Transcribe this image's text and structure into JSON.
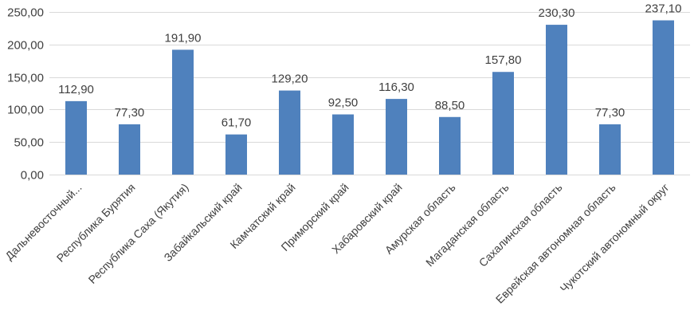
{
  "chart_data": {
    "type": "bar",
    "title": "",
    "xlabel": "",
    "ylabel": "",
    "ylim": [
      0,
      250
    ],
    "yticks": [
      0,
      50,
      100,
      150,
      200,
      250
    ],
    "ytick_labels": [
      "0,00",
      "50,00",
      "100,00",
      "150,00",
      "200,00",
      "250,00"
    ],
    "grid": true,
    "legend": "none",
    "bar_color": "#4f81bd",
    "categories": [
      "Дальневосточный...",
      "Республика Бурятия",
      "Республика Саха (Якутия)",
      "Забайкальский край",
      "Камчатский край",
      "Приморский край",
      "Хабаровский край",
      "Амурская область",
      "Магаданская область",
      "Сахалинская область",
      "Еврейская автономная область",
      "Чукотский автономный округ"
    ],
    "values": [
      112.9,
      77.3,
      191.9,
      61.7,
      129.2,
      92.5,
      116.3,
      88.5,
      157.8,
      230.3,
      77.3,
      237.1
    ],
    "value_labels": [
      "112,90",
      "77,30",
      "191,90",
      "61,70",
      "129,20",
      "92,50",
      "116,30",
      "88,50",
      "157,80",
      "230,30",
      "77,30",
      "237,10"
    ]
  }
}
